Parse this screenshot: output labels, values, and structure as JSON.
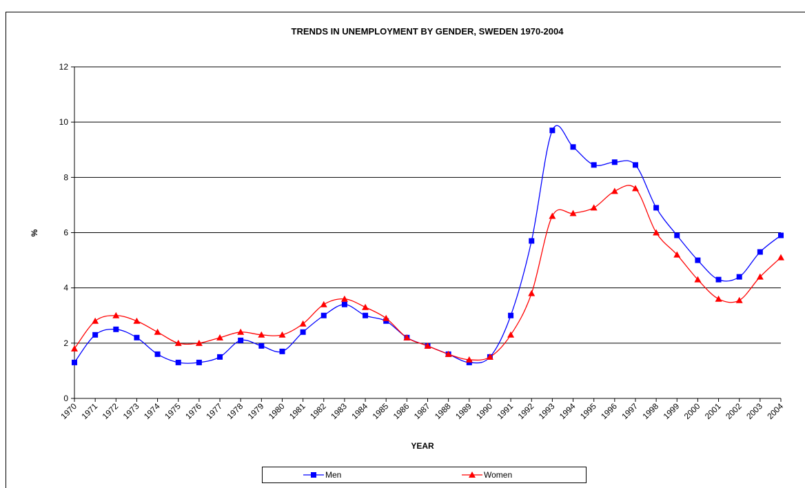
{
  "chart_data": {
    "type": "line",
    "title": "TRENDS IN UNEMPLOYMENT BY GENDER, SWEDEN 1970-2004",
    "x_label": "YEAR",
    "y_label": "%",
    "categories": [
      "1970",
      "1971",
      "1972",
      "1973",
      "1974",
      "1975",
      "1976",
      "1977",
      "1978",
      "1979",
      "1980",
      "1981",
      "1982",
      "1983",
      "1984",
      "1985",
      "1986",
      "1987",
      "1988",
      "1989",
      "1990",
      "1991",
      "1992",
      "1993",
      "1994",
      "1995",
      "1996",
      "1997",
      "1998",
      "1999",
      "2000",
      "2001",
      "2002",
      "2003",
      "2004"
    ],
    "series": [
      {
        "name": "Men",
        "color": "#0000ff",
        "marker": "square",
        "values": [
          1.3,
          2.3,
          2.5,
          2.2,
          1.6,
          1.3,
          1.3,
          1.5,
          2.1,
          1.9,
          1.7,
          2.4,
          3.0,
          3.4,
          3.0,
          2.8,
          2.2,
          1.9,
          1.6,
          1.3,
          1.5,
          3.0,
          5.7,
          9.7,
          9.1,
          8.45,
          8.55,
          8.45,
          6.9,
          5.9,
          5.0,
          4.3,
          4.4,
          5.3,
          5.9
        ]
      },
      {
        "name": "Women",
        "color": "#ff0000",
        "marker": "triangle",
        "values": [
          1.8,
          2.8,
          3.0,
          2.8,
          2.4,
          2.0,
          2.0,
          2.2,
          2.4,
          2.3,
          2.3,
          2.7,
          3.4,
          3.6,
          3.3,
          2.9,
          2.2,
          1.9,
          1.6,
          1.4,
          1.5,
          2.3,
          3.8,
          6.6,
          6.7,
          6.9,
          7.5,
          7.6,
          6.0,
          5.2,
          4.3,
          3.6,
          3.55,
          4.4,
          5.1
        ]
      }
    ],
    "ylim": [
      0,
      12
    ],
    "yticks": [
      0,
      2,
      4,
      6,
      8,
      10,
      12
    ],
    "grid": true,
    "smooth": true,
    "legend": "bottom"
  }
}
